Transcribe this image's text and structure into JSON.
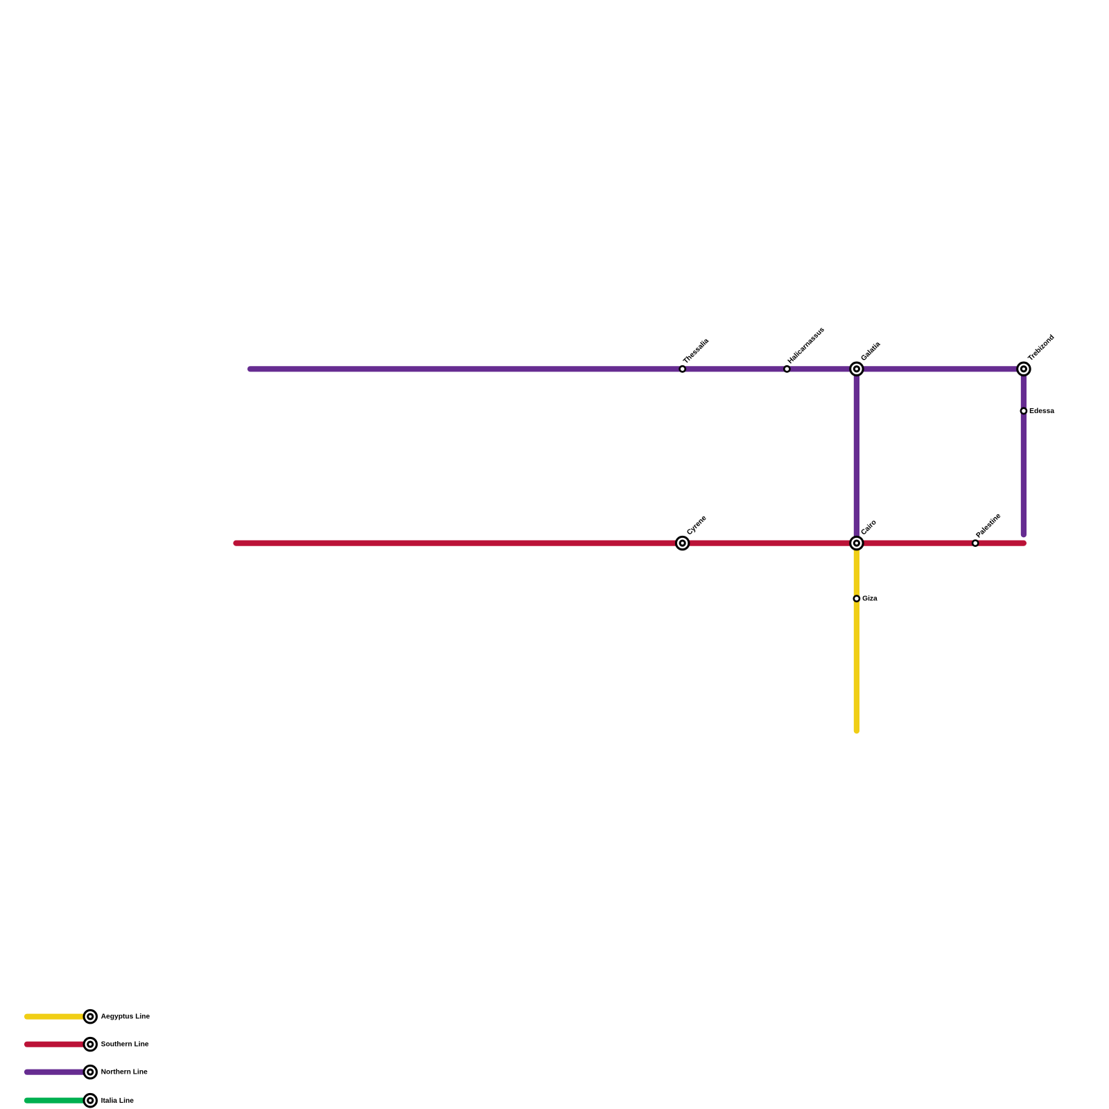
{
  "stations": [
    "Thessalia",
    "Halicarnassus",
    "Galatia",
    "Trebizond",
    "Edessa",
    "Cyrene",
    "Cairo",
    "Palestine",
    "Giza"
  ],
  "legend": [
    "Aegyptus Line",
    "Southern Line",
    "Northern Line",
    "Italia Line"
  ]
}
